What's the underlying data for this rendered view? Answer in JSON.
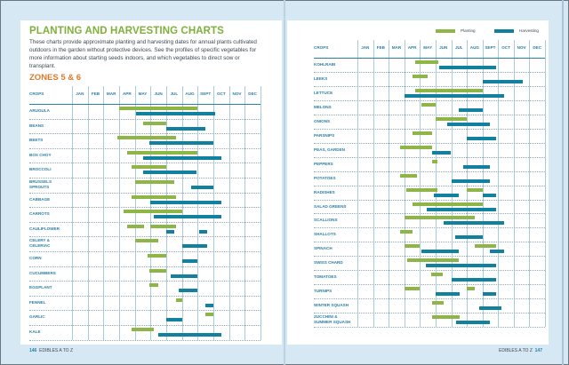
{
  "left_page": {
    "title": "PLANTING AND HARVESTING CHARTS",
    "intro": "These charts provide approximate planting and harvesting dates for annual plants cultivated outdoors in the garden without protective devices. See the profiles of specific vegetables for more information about starting seeds indoors, and which vegetables to direct sow or transplant.",
    "zones_heading": "ZONES 5 & 6",
    "footer_page": "146",
    "footer_text": "EDIBLES A TO Z"
  },
  "right_page": {
    "legend": {
      "planting": "Planting",
      "harvesting": "Harvesting"
    },
    "footer_page": "147",
    "footer_text": "EDIBLES A TO Z"
  },
  "colors": {
    "planting": "#8db646",
    "harvesting": "#12809f",
    "title": "#7faf3c",
    "zones": "#e07a2b",
    "label": "#2a7fa6"
  },
  "chart_data": [
    {
      "type": "gantt",
      "crops_header": "CROPS",
      "months": [
        "JAN",
        "FEB",
        "MAR",
        "APR",
        "MAY",
        "JUN",
        "JUL",
        "AUG",
        "SEPT",
        "OCT",
        "NOV",
        "DEC"
      ],
      "units": "month (1 = start of Jan, 13 = end of Dec)",
      "rows": [
        {
          "crop": "ARUGULA",
          "planting": [
            [
              4,
              9
            ]
          ],
          "harvesting": [
            [
              5.1,
              10.1
            ]
          ]
        },
        {
          "crop": "BEANS",
          "planting": [
            [
              5.5,
              7
            ]
          ],
          "harvesting": [
            [
              7,
              9.5
            ]
          ]
        },
        {
          "crop": "BEETS",
          "planting": [
            [
              3.9,
              7.6
            ]
          ],
          "harvesting": [
            [
              5.9,
              10
            ]
          ]
        },
        {
          "crop": "BOX CHOY",
          "planting": [
            [
              4.5,
              9
            ]
          ],
          "harvesting": [
            [
              5.5,
              10.5
            ]
          ]
        },
        {
          "crop": "BROCCOLI",
          "planting": [
            [
              4.8,
              7
            ]
          ],
          "harvesting": [
            [
              5.5,
              8.9
            ]
          ]
        },
        {
          "crop": "BRUSSELS SPROUTS",
          "planting": [
            [
              5,
              7.5
            ]
          ],
          "harvesting": [
            [
              8.6,
              10
            ]
          ]
        },
        {
          "crop": "CABBAGE",
          "planting": [
            [
              4.8,
              7.6
            ]
          ],
          "harvesting": [
            [
              6,
              10.5
            ]
          ]
        },
        {
          "crop": "CARROTS",
          "planting": [
            [
              4.3,
              8
            ]
          ],
          "harvesting": [
            [
              6.2,
              10.5
            ]
          ]
        },
        {
          "crop": "CAULIFLOWER",
          "planting": [
            [
              4.5,
              5.6
            ],
            [
              6,
              7.6
            ]
          ],
          "harvesting": [
            [
              7,
              7.5
            ],
            [
              9.1,
              9.6
            ]
          ]
        },
        {
          "crop": "CELERY & CELERIAC",
          "planting": [
            [
              5,
              6.5
            ]
          ],
          "harvesting": [
            [
              8,
              9.6
            ]
          ]
        },
        {
          "crop": "CORN",
          "planting": [
            [
              5.8,
              7
            ]
          ],
          "harvesting": [
            [
              8,
              9
            ]
          ]
        },
        {
          "crop": "CUCUMBERS",
          "planting": [
            [
              5.9,
              7
            ]
          ],
          "harvesting": [
            [
              7.3,
              9
            ]
          ]
        },
        {
          "crop": "EGGPLANT",
          "planting": [
            [
              5.9,
              6.5
            ]
          ],
          "harvesting": [
            [
              7.8,
              9
            ]
          ]
        },
        {
          "crop": "FENNEL",
          "planting": [
            [
              7.6,
              8
            ]
          ],
          "harvesting": [
            [
              9.5,
              10
            ]
          ]
        },
        {
          "crop": "GARLIC",
          "planting": [
            [
              9.5,
              10
            ]
          ],
          "harvesting": [
            [
              7,
              8
            ]
          ]
        },
        {
          "crop": "KALE",
          "planting": [
            [
              4.8,
              6.2
            ]
          ],
          "harvesting": [
            [
              6.5,
              10.5
            ]
          ]
        }
      ]
    },
    {
      "type": "gantt",
      "crops_header": "CROPS",
      "months": [
        "JAN",
        "FEB",
        "MAR",
        "APR",
        "MAY",
        "JUN",
        "JUL",
        "AUG",
        "SEPT",
        "OCT",
        "NOV",
        "DEC"
      ],
      "units": "month (1 = start of Jan, 13 = end of Dec)",
      "legend": [
        "Planting",
        "Harvesting"
      ],
      "rows": [
        {
          "crop": "KOHLRABI",
          "planting": [
            [
              4.7,
              6.2
            ]
          ],
          "harvesting": [
            [
              6.25,
              9.9
            ]
          ]
        },
        {
          "crop": "LEEKS",
          "planting": [
            [
              4.5,
              5.5
            ]
          ],
          "harvesting": [
            [
              9,
              11.6
            ]
          ]
        },
        {
          "crop": "LETTUCE",
          "planting": [
            [
              4.7,
              9
            ]
          ],
          "harvesting": [
            [
              4,
              10.4
            ]
          ]
        },
        {
          "crop": "MELONS",
          "planting": [
            [
              5.1,
              6
            ]
          ],
          "harvesting": [
            [
              7.5,
              9
            ]
          ]
        },
        {
          "crop": "ONIONS",
          "planting": [
            [
              6,
              8
            ]
          ],
          "harvesting": [
            [
              6.75,
              9.45
            ]
          ]
        },
        {
          "crop": "PARSNIPS",
          "planting": [
            [
              4.5,
              5.8
            ]
          ],
          "harvesting": [
            [
              8,
              9.9
            ]
          ]
        },
        {
          "crop": "PEAS, GARDEN",
          "planting": [
            [
              3.75,
              5.8
            ]
          ],
          "harvesting": [
            [
              5.75,
              7
            ]
          ]
        },
        {
          "crop": "PEPPERS",
          "planting": [
            [
              5.75,
              6.1
            ]
          ],
          "harvesting": [
            [
              7.75,
              9.45
            ]
          ]
        },
        {
          "crop": "POTATOES",
          "planting": [
            [
              3.75,
              4.8
            ]
          ],
          "harvesting": [
            [
              7,
              9.45
            ]
          ]
        },
        {
          "crop": "RADISHES",
          "planting": [
            [
              4.1,
              6.1
            ],
            [
              8,
              9
            ]
          ],
          "harvesting": [
            [
              5.9,
              7.5
            ],
            [
              9,
              9.9
            ]
          ]
        },
        {
          "crop": "SALAD GREENS",
          "planting": [
            [
              4.5,
              9
            ]
          ],
          "harvesting": [
            [
              5.45,
              9.9
            ]
          ]
        },
        {
          "crop": "SCALLIONS",
          "planting": [
            [
              4,
              8.5
            ]
          ],
          "harvesting": [
            [
              6.5,
              10.4
            ]
          ]
        },
        {
          "crop": "SHALLOTS",
          "planting": [
            [
              3.75,
              4.5
            ]
          ],
          "harvesting": [
            [
              7.25,
              9
            ]
          ]
        },
        {
          "crop": "SPINACH",
          "planting": [
            [
              4,
              5
            ],
            [
              8.5,
              9.9
            ]
          ],
          "harvesting": [
            [
              5.1,
              7.5
            ],
            [
              9.45,
              10.4
            ]
          ]
        },
        {
          "crop": "SWISS CHARD",
          "planting": [
            [
              4.2,
              7.5
            ]
          ],
          "harvesting": [
            [
              5.4,
              9.9
            ]
          ]
        },
        {
          "crop": "TOMATOES",
          "planting": [
            [
              5.7,
              6.45
            ]
          ],
          "harvesting": [
            [
              7,
              9.9
            ]
          ]
        },
        {
          "crop": "TURNIPS",
          "planting": [
            [
              4,
              5
            ],
            [
              8,
              8.5
            ]
          ],
          "harvesting": [
            [
              6,
              7.55
            ],
            [
              9,
              9.9
            ]
          ]
        },
        {
          "crop": "WINTER SQUASH",
          "planting": [
            [
              5.8,
              6.5
            ]
          ],
          "harvesting": [
            [
              8.8,
              10.2
            ]
          ]
        },
        {
          "crop": "ZUCCHINI & SUMMER SQUASH",
          "planting": [
            [
              5.8,
              7.55
            ]
          ],
          "harvesting": [
            [
              7.3,
              9.5
            ]
          ]
        }
      ]
    }
  ]
}
